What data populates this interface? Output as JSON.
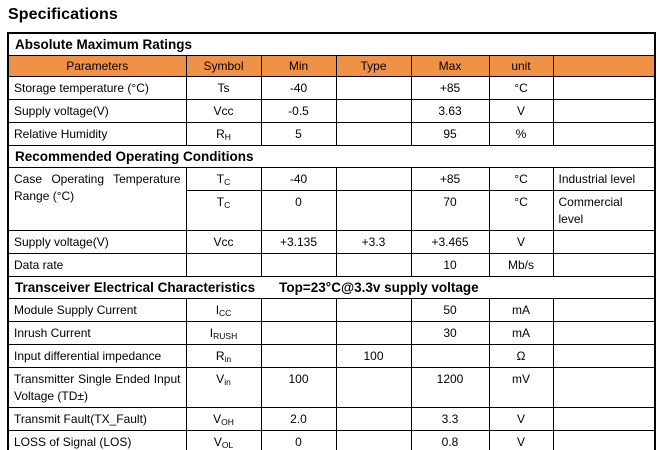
{
  "page": {
    "title": "Specifications"
  },
  "table": {
    "header_fill": "#F09246",
    "columns": [
      "Parameters",
      "Symbol",
      "Min",
      "Type",
      "Max",
      "unit",
      ""
    ],
    "sections": [
      {
        "title": "Absolute Maximum Ratings",
        "subtitle": "",
        "show_columns": true,
        "rows": [
          {
            "param": "Storage temperature (°C)",
            "symbol": {
              "base": "Ts",
              "sub": ""
            },
            "min": "-40",
            "type": "",
            "max": "+85",
            "unit": "°C",
            "note": ""
          },
          {
            "param": "Supply voltage(V)",
            "symbol": {
              "base": "Vcc",
              "sub": ""
            },
            "min": "-0.5",
            "type": "",
            "max": "3.63",
            "unit": "V",
            "note": ""
          },
          {
            "param": "Relative Humidity",
            "symbol": {
              "base": "R",
              "sub": "H"
            },
            "min": "5",
            "type": "",
            "max": "95",
            "unit": "%",
            "note": ""
          }
        ]
      },
      {
        "title": "Recommended Operating Conditions",
        "subtitle": "",
        "show_columns": false,
        "rows": [
          {
            "param": "Case Operating Temperature Range (°C)",
            "param_rowspan": 2,
            "symbol": {
              "base": "T",
              "sub": "C"
            },
            "min": "-40",
            "type": "",
            "max": "+85",
            "unit": "°C",
            "note": "Industrial level"
          },
          {
            "param": null,
            "symbol": {
              "base": "T",
              "sub": "C"
            },
            "min": "0",
            "type": "",
            "max": "70",
            "unit": "°C",
            "note": "Commercial level"
          },
          {
            "param": "Supply voltage(V)",
            "symbol": {
              "base": "Vcc",
              "sub": ""
            },
            "min": "+3.135",
            "type": "+3.3",
            "max": "+3.465",
            "unit": "V",
            "note": ""
          },
          {
            "param": "Data rate",
            "symbol": {
              "base": "",
              "sub": ""
            },
            "min": "",
            "type": "",
            "max": "10",
            "unit": "Mb/s",
            "note": ""
          }
        ]
      },
      {
        "title": "Transceiver Electrical Characteristics",
        "subtitle": "Top=23°C@3.3v supply voltage",
        "show_columns": false,
        "rows": [
          {
            "param": "Module Supply Current",
            "symbol": {
              "base": "I",
              "sub": "CC"
            },
            "min": "",
            "type": "",
            "max": "50",
            "unit": "mA",
            "note": ""
          },
          {
            "param": "Inrush Current",
            "symbol": {
              "base": "I",
              "sub": "RUSH"
            },
            "min": "",
            "type": "",
            "max": "30",
            "unit": "mA",
            "note": ""
          },
          {
            "param": "Input differential impedance",
            "symbol": {
              "base": "R",
              "sub": "in"
            },
            "min": "",
            "type": "100",
            "max": "",
            "unit": "Ω",
            "note": ""
          },
          {
            "param": "Transmitter Single Ended Input Voltage (TD±)",
            "symbol": {
              "base": "V",
              "sub": "in"
            },
            "min": "100",
            "type": "",
            "max": "1200",
            "unit": "mV",
            "note": ""
          },
          {
            "param": "Transmit Fault(TX_Fault)",
            "symbol": {
              "base": "V",
              "sub": "OH"
            },
            "min": "2.0",
            "type": "",
            "max": "3.3",
            "unit": "V",
            "note": ""
          },
          {
            "param": "LOSS of Signal (LOS)",
            "symbol": {
              "base": "V",
              "sub": "OL"
            },
            "min": "0",
            "type": "",
            "max": "0.8",
            "unit": "V",
            "note": ""
          }
        ]
      }
    ]
  }
}
